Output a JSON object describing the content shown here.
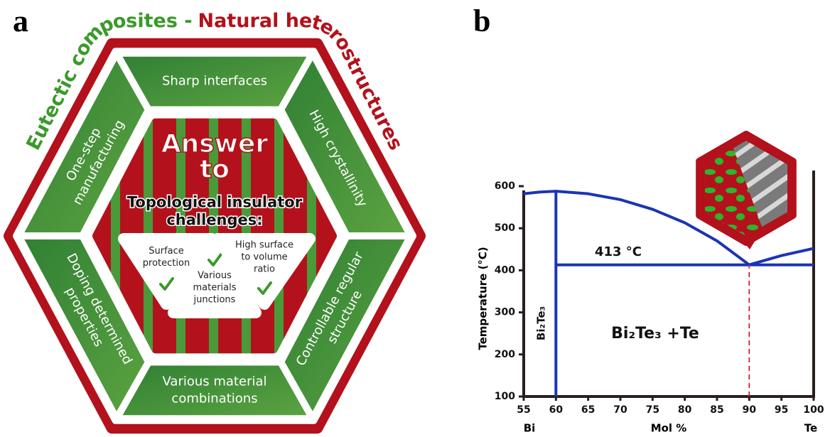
{
  "panel_a": {
    "label": "a",
    "title_left": "Eutectic composites -",
    "title_right": "Natural heterostructures",
    "segments": [
      {
        "lines": [
          "Controllable regular",
          "structure"
        ]
      },
      {
        "lines": [
          "Various material",
          "combinations"
        ]
      },
      {
        "lines": [
          "Doping determined",
          "properties"
        ]
      },
      {
        "lines": [
          "One-step",
          "manufacturing"
        ]
      },
      {
        "lines": [
          "Sharp interfaces"
        ]
      },
      {
        "lines": [
          "High crystallinity"
        ]
      }
    ],
    "center": {
      "heading": [
        "Answer",
        "to"
      ],
      "subheading": [
        "Topological insulator",
        "challenges:"
      ],
      "items": [
        {
          "lines": [
            "Surface",
            "protection"
          ]
        },
        {
          "lines": [
            "Various",
            "materials",
            "junctions"
          ]
        },
        {
          "lines": [
            "High surface",
            "to volume",
            "ratio"
          ]
        }
      ]
    }
  },
  "chart_data": {
    "type": "line",
    "label": "b",
    "xlim": [
      55,
      100
    ],
    "ylim": [
      100,
      600
    ],
    "xticks": [
      55,
      60,
      65,
      70,
      75,
      80,
      85,
      90,
      95,
      100
    ],
    "yticks": [
      100,
      200,
      300,
      400,
      500,
      600
    ],
    "xlabel": "Mol %",
    "ylabel": "Temperature (°C)",
    "x_end_labels": [
      "Bi",
      "Te"
    ],
    "annotations": [
      "413 °C",
      "Bi₂Te₃ +Te"
    ],
    "phase_label": "Bi₂Te₃",
    "series": [
      {
        "color": "#1c34b4",
        "style": "solid",
        "x": [
          55,
          57.5,
          60,
          65,
          70,
          75,
          80,
          85,
          90
        ],
        "values": [
          582,
          586,
          588,
          582,
          568,
          545,
          513,
          470,
          413
        ]
      },
      {
        "color": "#1c34b4",
        "style": "solid",
        "x": [
          90,
          95,
          100
        ],
        "values": [
          413,
          435,
          452
        ]
      },
      {
        "color": "#1c34b4",
        "style": "solid",
        "x": [
          60,
          100
        ],
        "values": [
          413,
          413
        ]
      },
      {
        "color": "#1c34b4",
        "style": "solid",
        "x": [
          60,
          60
        ],
        "values": [
          100,
          588
        ]
      },
      {
        "color": "#c0262d",
        "style": "dashed",
        "x": [
          90,
          90
        ],
        "values": [
          100,
          413
        ]
      }
    ]
  }
}
